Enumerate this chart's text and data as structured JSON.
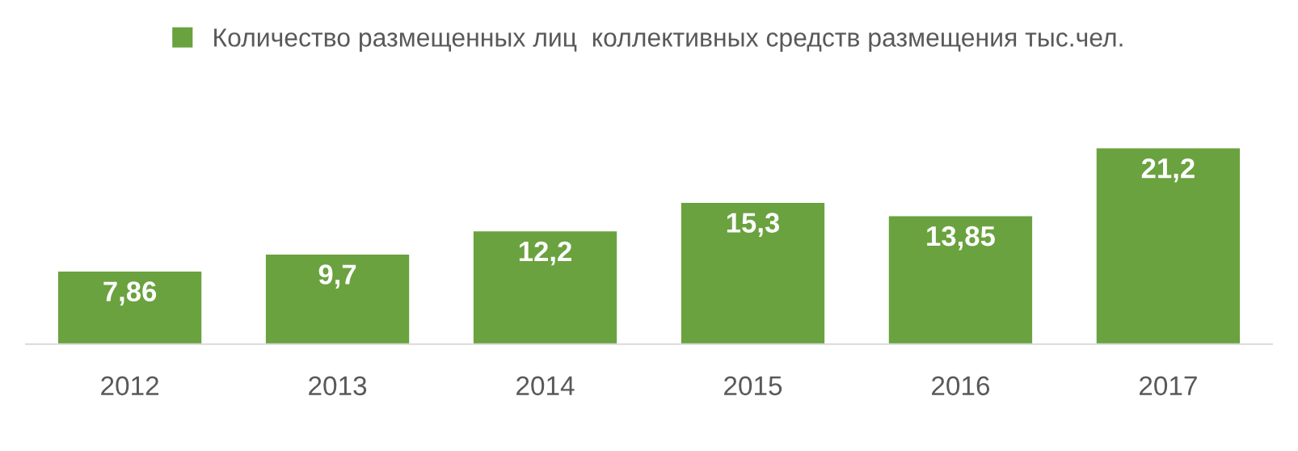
{
  "chart_data": {
    "type": "bar",
    "categories": [
      "2012",
      "2013",
      "2014",
      "2015",
      "2016",
      "2017"
    ],
    "series": [
      {
        "name": "Количество размещенных лиц  коллективных средств размещения тыс.чел.",
        "color": "#6aa23f",
        "values": [
          7.86,
          9.7,
          12.2,
          15.3,
          13.85,
          21.2
        ],
        "value_labels": [
          "7,86",
          "9,7",
          "12,2",
          "15,3",
          "13,85",
          "21,2"
        ]
      }
    ],
    "legend": "top",
    "grid": false
  }
}
